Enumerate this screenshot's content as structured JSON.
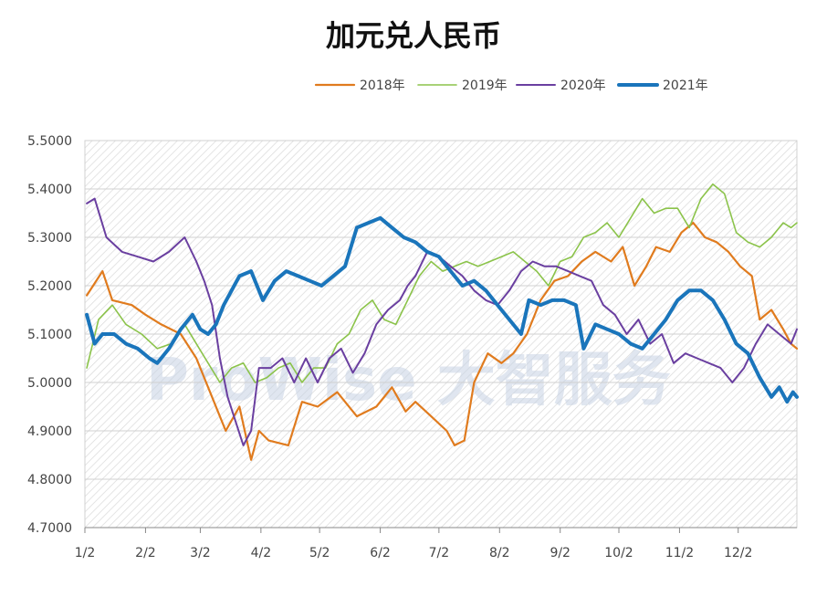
{
  "chart_data": {
    "type": "line",
    "title": "加元兑人民币",
    "xlabel": "",
    "ylabel": "",
    "ylim": [
      4.7,
      5.5
    ],
    "yticks": [
      "4.7000",
      "4.8000",
      "4.9000",
      "5.0000",
      "5.1000",
      "5.2000",
      "5.3000",
      "5.4000",
      "5.5000"
    ],
    "xticks": [
      "1/2",
      "2/2",
      "3/2",
      "4/2",
      "5/2",
      "6/2",
      "7/2",
      "8/2",
      "9/2",
      "10/2",
      "11/2",
      "12/2"
    ],
    "x_domain_days": [
      1,
      365
    ],
    "legend_position": "top",
    "grid": true,
    "watermark": "ProWise 大智服务",
    "series": [
      {
        "name": "2018年",
        "color": "#e07b1e",
        "points": [
          [
            2,
            5.18
          ],
          [
            10,
            5.23
          ],
          [
            15,
            5.17
          ],
          [
            25,
            5.16
          ],
          [
            32,
            5.14
          ],
          [
            40,
            5.12
          ],
          [
            50,
            5.1
          ],
          [
            58,
            5.05
          ],
          [
            66,
            4.97
          ],
          [
            73,
            4.9
          ],
          [
            80,
            4.95
          ],
          [
            86,
            4.84
          ],
          [
            90,
            4.9
          ],
          [
            95,
            4.88
          ],
          [
            105,
            4.87
          ],
          [
            112,
            4.96
          ],
          [
            120,
            4.95
          ],
          [
            130,
            4.98
          ],
          [
            140,
            4.93
          ],
          [
            150,
            4.95
          ],
          [
            158,
            4.99
          ],
          [
            165,
            4.94
          ],
          [
            170,
            4.96
          ],
          [
            178,
            4.93
          ],
          [
            186,
            4.9
          ],
          [
            190,
            4.87
          ],
          [
            195,
            4.88
          ],
          [
            200,
            5.0
          ],
          [
            207,
            5.06
          ],
          [
            214,
            5.04
          ],
          [
            220,
            5.06
          ],
          [
            227,
            5.1
          ],
          [
            234,
            5.17
          ],
          [
            241,
            5.21
          ],
          [
            248,
            5.22
          ],
          [
            255,
            5.25
          ],
          [
            262,
            5.27
          ],
          [
            270,
            5.25
          ],
          [
            276,
            5.28
          ],
          [
            282,
            5.2
          ],
          [
            288,
            5.24
          ],
          [
            293,
            5.28
          ],
          [
            300,
            5.27
          ],
          [
            306,
            5.31
          ],
          [
            312,
            5.33
          ],
          [
            318,
            5.3
          ],
          [
            324,
            5.29
          ],
          [
            330,
            5.27
          ],
          [
            336,
            5.24
          ],
          [
            342,
            5.22
          ],
          [
            346,
            5.13
          ],
          [
            352,
            5.15
          ],
          [
            358,
            5.11
          ],
          [
            362,
            5.08
          ],
          [
            365,
            5.07
          ]
        ]
      },
      {
        "name": "2019年",
        "color": "#8bc34a",
        "points": [
          [
            2,
            5.03
          ],
          [
            8,
            5.13
          ],
          [
            15,
            5.16
          ],
          [
            22,
            5.12
          ],
          [
            30,
            5.1
          ],
          [
            38,
            5.07
          ],
          [
            45,
            5.08
          ],
          [
            52,
            5.12
          ],
          [
            58,
            5.08
          ],
          [
            64,
            5.04
          ],
          [
            70,
            5.0
          ],
          [
            76,
            5.03
          ],
          [
            82,
            5.04
          ],
          [
            88,
            5.0
          ],
          [
            94,
            5.01
          ],
          [
            100,
            5.03
          ],
          [
            106,
            5.04
          ],
          [
            112,
            5.0
          ],
          [
            118,
            5.03
          ],
          [
            124,
            5.03
          ],
          [
            130,
            5.08
          ],
          [
            136,
            5.1
          ],
          [
            142,
            5.15
          ],
          [
            148,
            5.17
          ],
          [
            154,
            5.13
          ],
          [
            160,
            5.12
          ],
          [
            166,
            5.17
          ],
          [
            172,
            5.22
          ],
          [
            178,
            5.25
          ],
          [
            184,
            5.23
          ],
          [
            190,
            5.24
          ],
          [
            196,
            5.25
          ],
          [
            202,
            5.24
          ],
          [
            208,
            5.25
          ],
          [
            214,
            5.26
          ],
          [
            220,
            5.27
          ],
          [
            226,
            5.25
          ],
          [
            232,
            5.23
          ],
          [
            238,
            5.2
          ],
          [
            244,
            5.25
          ],
          [
            250,
            5.26
          ],
          [
            256,
            5.3
          ],
          [
            262,
            5.31
          ],
          [
            268,
            5.33
          ],
          [
            274,
            5.3
          ],
          [
            280,
            5.34
          ],
          [
            286,
            5.38
          ],
          [
            292,
            5.35
          ],
          [
            298,
            5.36
          ],
          [
            304,
            5.36
          ],
          [
            310,
            5.32
          ],
          [
            316,
            5.38
          ],
          [
            322,
            5.41
          ],
          [
            328,
            5.39
          ],
          [
            334,
            5.31
          ],
          [
            340,
            5.29
          ],
          [
            346,
            5.28
          ],
          [
            352,
            5.3
          ],
          [
            358,
            5.33
          ],
          [
            362,
            5.32
          ],
          [
            365,
            5.33
          ]
        ]
      },
      {
        "name": "2020年",
        "color": "#6a3fa0",
        "points": [
          [
            2,
            5.37
          ],
          [
            6,
            5.38
          ],
          [
            12,
            5.3
          ],
          [
            20,
            5.27
          ],
          [
            28,
            5.26
          ],
          [
            36,
            5.25
          ],
          [
            44,
            5.27
          ],
          [
            52,
            5.3
          ],
          [
            58,
            5.25
          ],
          [
            62,
            5.21
          ],
          [
            66,
            5.16
          ],
          [
            70,
            5.05
          ],
          [
            74,
            4.97
          ],
          [
            78,
            4.92
          ],
          [
            82,
            4.87
          ],
          [
            86,
            4.9
          ],
          [
            90,
            5.03
          ],
          [
            96,
            5.03
          ],
          [
            102,
            5.05
          ],
          [
            108,
            5.0
          ],
          [
            114,
            5.05
          ],
          [
            120,
            5.0
          ],
          [
            126,
            5.05
          ],
          [
            132,
            5.07
          ],
          [
            138,
            5.02
          ],
          [
            144,
            5.06
          ],
          [
            150,
            5.12
          ],
          [
            156,
            5.15
          ],
          [
            162,
            5.17
          ],
          [
            166,
            5.2
          ],
          [
            170,
            5.22
          ],
          [
            176,
            5.27
          ],
          [
            182,
            5.26
          ],
          [
            188,
            5.24
          ],
          [
            194,
            5.22
          ],
          [
            200,
            5.19
          ],
          [
            206,
            5.17
          ],
          [
            212,
            5.16
          ],
          [
            218,
            5.19
          ],
          [
            224,
            5.23
          ],
          [
            230,
            5.25
          ],
          [
            236,
            5.24
          ],
          [
            242,
            5.24
          ],
          [
            248,
            5.23
          ],
          [
            254,
            5.22
          ],
          [
            260,
            5.21
          ],
          [
            266,
            5.16
          ],
          [
            272,
            5.14
          ],
          [
            278,
            5.1
          ],
          [
            284,
            5.13
          ],
          [
            290,
            5.08
          ],
          [
            296,
            5.1
          ],
          [
            302,
            5.04
          ],
          [
            308,
            5.06
          ],
          [
            314,
            5.05
          ],
          [
            320,
            5.04
          ],
          [
            326,
            5.03
          ],
          [
            332,
            5.0
          ],
          [
            338,
            5.03
          ],
          [
            344,
            5.08
          ],
          [
            350,
            5.12
          ],
          [
            356,
            5.1
          ],
          [
            362,
            5.08
          ],
          [
            365,
            5.11
          ]
        ]
      },
      {
        "name": "2021年",
        "color": "#1a75bb",
        "points": [
          [
            2,
            5.14
          ],
          [
            6,
            5.08
          ],
          [
            10,
            5.1
          ],
          [
            16,
            5.1
          ],
          [
            22,
            5.08
          ],
          [
            28,
            5.07
          ],
          [
            34,
            5.05
          ],
          [
            38,
            5.04
          ],
          [
            44,
            5.07
          ],
          [
            50,
            5.11
          ],
          [
            56,
            5.14
          ],
          [
            60,
            5.11
          ],
          [
            64,
            5.1
          ],
          [
            68,
            5.12
          ],
          [
            72,
            5.16
          ],
          [
            76,
            5.19
          ],
          [
            80,
            5.22
          ],
          [
            86,
            5.23
          ],
          [
            92,
            5.17
          ],
          [
            98,
            5.21
          ],
          [
            104,
            5.23
          ],
          [
            110,
            5.22
          ],
          [
            116,
            5.21
          ],
          [
            122,
            5.2
          ],
          [
            128,
            5.22
          ],
          [
            134,
            5.24
          ],
          [
            140,
            5.32
          ],
          [
            146,
            5.33
          ],
          [
            152,
            5.34
          ],
          [
            158,
            5.32
          ],
          [
            164,
            5.3
          ],
          [
            170,
            5.29
          ],
          [
            176,
            5.27
          ],
          [
            182,
            5.26
          ],
          [
            188,
            5.23
          ],
          [
            194,
            5.2
          ],
          [
            200,
            5.21
          ],
          [
            206,
            5.19
          ],
          [
            212,
            5.16
          ],
          [
            218,
            5.13
          ],
          [
            224,
            5.1
          ],
          [
            228,
            5.17
          ],
          [
            234,
            5.16
          ],
          [
            240,
            5.17
          ],
          [
            246,
            5.17
          ],
          [
            252,
            5.16
          ],
          [
            256,
            5.07
          ],
          [
            262,
            5.12
          ],
          [
            268,
            5.11
          ],
          [
            274,
            5.1
          ],
          [
            280,
            5.08
          ],
          [
            286,
            5.07
          ],
          [
            292,
            5.1
          ],
          [
            298,
            5.13
          ],
          [
            304,
            5.17
          ],
          [
            310,
            5.19
          ],
          [
            316,
            5.19
          ],
          [
            322,
            5.17
          ],
          [
            328,
            5.13
          ],
          [
            334,
            5.08
          ],
          [
            340,
            5.06
          ],
          [
            346,
            5.01
          ],
          [
            352,
            4.97
          ],
          [
            356,
            4.99
          ],
          [
            360,
            4.96
          ],
          [
            363,
            4.98
          ],
          [
            365,
            4.97
          ]
        ]
      }
    ]
  }
}
